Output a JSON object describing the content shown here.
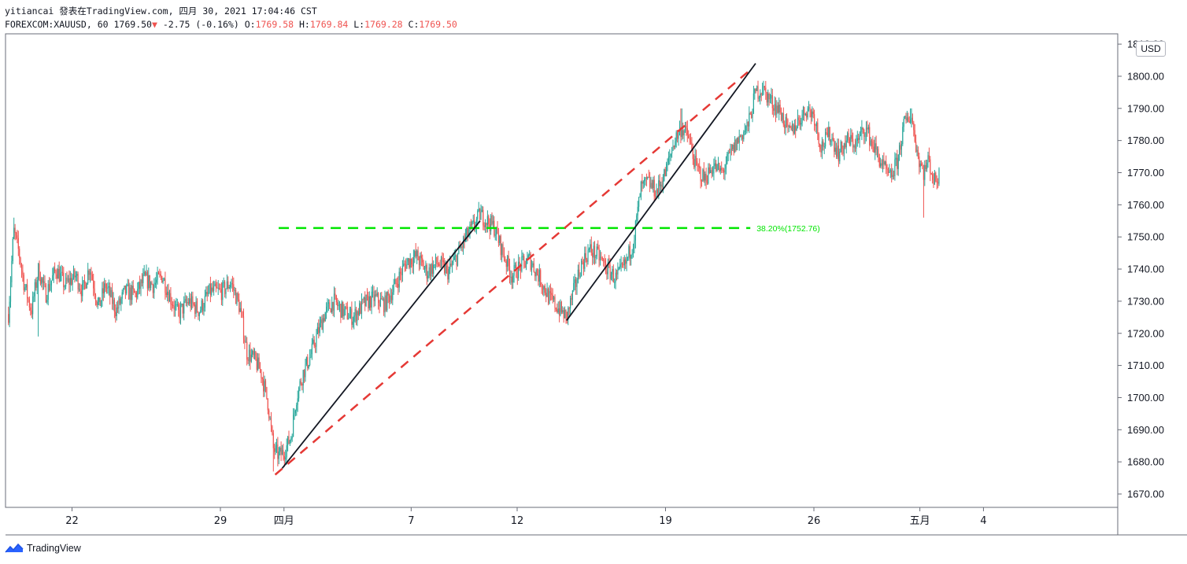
{
  "header": {
    "line1": "yitiancai 發表在TradingView.com, 四月 30, 2021 17:04:46 CST",
    "symbol": "FOREXCOM:XAUUSD, 60",
    "last": "1769.50",
    "change_arrow": "▼",
    "change": "-2.75 (-0.16%)",
    "o_label": "O:",
    "o_value": "1769.58",
    "h_label": "H:",
    "h_value": "1769.84",
    "l_label": "L:",
    "l_value": "1769.28",
    "c_label": "C:",
    "c_value": "1769.50"
  },
  "currency_button": "USD",
  "footer": {
    "brand": "TradingView",
    "logo_icon": "tradingview-logo-icon"
  },
  "colors": {
    "up": "#26a69a",
    "down": "#ef5350",
    "fib": "#00e600",
    "trend": "#131722",
    "channel": "#e53935"
  },
  "chart_data": {
    "type": "candlestick",
    "title": "FOREXCOM:XAUUSD, 60",
    "ylim": [
      1665,
      1812
    ],
    "yticks": [
      1670,
      1680,
      1690,
      1700,
      1710,
      1720,
      1730,
      1740,
      1750,
      1760,
      1770,
      1780,
      1790,
      1800,
      1810
    ],
    "ytick_labels": [
      "1670.00",
      "1680.00",
      "1690.00",
      "1700.00",
      "1710.00",
      "1720.00",
      "1730.00",
      "1740.00",
      "1750.00",
      "1760.00",
      "1770.00",
      "1780.00",
      "1790.00",
      "1800.00",
      "1810.00"
    ],
    "x_ticks": [
      {
        "label": "22",
        "date": "2021-03-22"
      },
      {
        "label": "29",
        "date": "2021-03-29"
      },
      {
        "label": "四月",
        "date": "2021-04-01"
      },
      {
        "label": "7",
        "date": "2021-04-07"
      },
      {
        "label": "12",
        "date": "2021-04-12"
      },
      {
        "label": "19",
        "date": "2021-04-19"
      },
      {
        "label": "26",
        "date": "2021-04-26"
      },
      {
        "label": "五月",
        "date": "2021-05-01"
      },
      {
        "label": "4",
        "date": "2021-05-04"
      }
    ],
    "price_path": [
      [
        "2021-03-19 00:00",
        1726
      ],
      [
        "2021-03-19 06:00",
        1752
      ],
      [
        "2021-03-19 12:00",
        1745
      ],
      [
        "2021-03-19 18:00",
        1735
      ],
      [
        "2021-03-20 02:00",
        1727
      ],
      [
        "2021-03-20 10:00",
        1740
      ],
      [
        "2021-03-20 18:00",
        1732
      ],
      [
        "2021-03-21 06:00",
        1740
      ],
      [
        "2021-03-21 16:00",
        1735
      ],
      [
        "2021-03-22 04:00",
        1738
      ],
      [
        "2021-03-22 12:00",
        1733
      ],
      [
        "2021-03-22 20:00",
        1741
      ],
      [
        "2021-03-23 06:00",
        1728
      ],
      [
        "2021-03-23 14:00",
        1735
      ],
      [
        "2021-03-24 02:00",
        1727
      ],
      [
        "2021-03-24 12:00",
        1733
      ],
      [
        "2021-03-25 00:00",
        1732
      ],
      [
        "2021-03-25 10:00",
        1737
      ],
      [
        "2021-03-25 20:00",
        1735
      ],
      [
        "2021-03-26 06:00",
        1738
      ],
      [
        "2021-03-26 14:00",
        1732
      ],
      [
        "2021-03-27 00:00",
        1726
      ],
      [
        "2021-03-27 12:00",
        1730
      ],
      [
        "2021-03-28 00:00",
        1727
      ],
      [
        "2021-03-28 12:00",
        1733
      ],
      [
        "2021-03-29 02:00",
        1733
      ],
      [
        "2021-03-29 12:00",
        1736
      ],
      [
        "2021-03-29 22:00",
        1728
      ],
      [
        "2021-03-30 06:00",
        1714
      ],
      [
        "2021-03-30 14:00",
        1712
      ],
      [
        "2021-03-30 22:00",
        1708
      ],
      [
        "2021-03-31 06:00",
        1698
      ],
      [
        "2021-03-31 12:00",
        1684
      ],
      [
        "2021-03-31 18:00",
        1682
      ],
      [
        "2021-04-01 00:00",
        1683
      ],
      [
        "2021-04-01 08:00",
        1688
      ],
      [
        "2021-04-01 14:00",
        1700
      ],
      [
        "2021-04-01 22:00",
        1708
      ],
      [
        "2021-04-02 06:00",
        1713
      ],
      [
        "2021-04-02 14:00",
        1720
      ],
      [
        "2021-04-02 22:00",
        1726
      ],
      [
        "2021-04-03 08:00",
        1730
      ],
      [
        "2021-04-03 18:00",
        1727
      ],
      [
        "2021-04-04 06:00",
        1725
      ],
      [
        "2021-04-04 18:00",
        1729
      ],
      [
        "2021-04-05 06:00",
        1731
      ],
      [
        "2021-04-05 18:00",
        1729
      ],
      [
        "2021-04-06 06:00",
        1735
      ],
      [
        "2021-04-06 18:00",
        1742
      ],
      [
        "2021-04-07 06:00",
        1744
      ],
      [
        "2021-04-07 18:00",
        1739
      ],
      [
        "2021-04-08 06:00",
        1742
      ],
      [
        "2021-04-08 18:00",
        1739
      ],
      [
        "2021-04-09 04:00",
        1744
      ],
      [
        "2021-04-09 14:00",
        1750
      ],
      [
        "2021-04-09 22:00",
        1753
      ],
      [
        "2021-04-10 06:00",
        1757
      ],
      [
        "2021-04-10 14:00",
        1755
      ],
      [
        "2021-04-10 22:00",
        1753
      ],
      [
        "2021-04-11 08:00",
        1745
      ],
      [
        "2021-04-11 18:00",
        1738
      ],
      [
        "2021-04-12 04:00",
        1741
      ],
      [
        "2021-04-12 14:00",
        1743
      ],
      [
        "2021-04-13 02:00",
        1737
      ],
      [
        "2021-04-13 12:00",
        1731
      ],
      [
        "2021-04-13 22:00",
        1728
      ],
      [
        "2021-04-14 08:00",
        1725
      ],
      [
        "2021-04-14 16:00",
        1733
      ],
      [
        "2021-04-15 00:00",
        1741
      ],
      [
        "2021-04-15 10:00",
        1746
      ],
      [
        "2021-04-15 20:00",
        1744
      ],
      [
        "2021-04-16 06:00",
        1740
      ],
      [
        "2021-04-16 16:00",
        1737
      ],
      [
        "2021-04-17 02:00",
        1741
      ],
      [
        "2021-04-17 12:00",
        1749
      ],
      [
        "2021-04-17 20:00",
        1765
      ],
      [
        "2021-04-18 04:00",
        1767
      ],
      [
        "2021-04-18 14:00",
        1764
      ],
      [
        "2021-04-19 00:00",
        1770
      ],
      [
        "2021-04-19 10:00",
        1780
      ],
      [
        "2021-04-19 18:00",
        1784
      ],
      [
        "2021-04-20 02:00",
        1781
      ],
      [
        "2021-04-20 10:00",
        1772
      ],
      [
        "2021-04-20 20:00",
        1768
      ],
      [
        "2021-04-21 06:00",
        1772
      ],
      [
        "2021-04-21 16:00",
        1770
      ],
      [
        "2021-04-22 02:00",
        1776
      ],
      [
        "2021-04-22 12:00",
        1781
      ],
      [
        "2021-04-22 22:00",
        1785
      ],
      [
        "2021-04-23 06:00",
        1795
      ],
      [
        "2021-04-23 14:00",
        1796
      ],
      [
        "2021-04-24 00:00",
        1792
      ],
      [
        "2021-04-24 10:00",
        1789
      ],
      [
        "2021-04-24 20:00",
        1782
      ],
      [
        "2021-04-25 06:00",
        1786
      ],
      [
        "2021-04-25 16:00",
        1790
      ],
      [
        "2021-04-26 00:00",
        1788
      ],
      [
        "2021-04-26 08:00",
        1778
      ],
      [
        "2021-04-26 18:00",
        1782
      ],
      [
        "2021-04-27 04:00",
        1776
      ],
      [
        "2021-04-27 14:00",
        1780
      ],
      [
        "2021-04-28 00:00",
        1779
      ],
      [
        "2021-04-28 10:00",
        1784
      ],
      [
        "2021-04-28 20:00",
        1778
      ],
      [
        "2021-04-29 06:00",
        1772
      ],
      [
        "2021-04-29 14:00",
        1768
      ],
      [
        "2021-04-29 22:00",
        1773
      ],
      [
        "2021-04-30 06:00",
        1785
      ],
      [
        "2021-04-30 14:00",
        1788
      ],
      [
        "2021-04-30 22:00",
        1775
      ],
      [
        "2021-05-01 04:00",
        1770
      ],
      [
        "2021-05-01 10:00",
        1774
      ],
      [
        "2021-05-01 16:00",
        1767
      ],
      [
        "2021-05-01 22:00",
        1769.5
      ]
    ],
    "price_extremes": [
      {
        "date": "2021-03-19 06:00",
        "high": 1756
      },
      {
        "date": "2021-03-20 10:00",
        "low": 1719
      },
      {
        "date": "2021-03-31 12:00",
        "low": 1677
      },
      {
        "date": "2021-04-10 06:00",
        "high": 1759
      },
      {
        "date": "2021-04-14 08:00",
        "low": 1723
      },
      {
        "date": "2021-04-19 18:00",
        "high": 1790
      },
      {
        "date": "2021-04-23 14:00",
        "high": 1798
      },
      {
        "date": "2021-04-30 14:00",
        "high": 1790
      },
      {
        "date": "2021-05-01 04:00",
        "low": 1756
      }
    ],
    "drawings": {
      "fib_level": {
        "label": "38.20%(1752.76)",
        "value": 1752.76,
        "x_start": "2021-03-31 18:00",
        "x_end": "2021-04-23 00:00"
      },
      "trend_lines": [
        {
          "x1": "2021-03-31 22:00",
          "y1": 1678,
          "x2": "2021-04-10 06:00",
          "y2": 1755
        },
        {
          "x1": "2021-04-14 08:00",
          "y1": 1724,
          "x2": "2021-04-23 06:00",
          "y2": 1804
        }
      ],
      "channel_line": {
        "x1": "2021-03-31 14:00",
        "y1": 1676,
        "x2": "2021-04-23 00:00",
        "y2": 1802
      }
    }
  }
}
